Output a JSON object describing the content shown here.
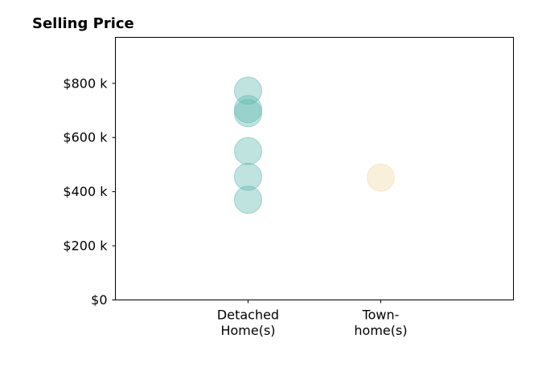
{
  "chart_data": {
    "type": "scatter",
    "title": "Selling Price",
    "xlabel": "",
    "ylabel": "",
    "categories": [
      [
        "Detached",
        "Home(s)"
      ],
      [
        "Town-",
        "home(s)"
      ]
    ],
    "y_ticks": [
      {
        "value": 0,
        "label": "$0"
      },
      {
        "value": 200,
        "label": "$200 k"
      },
      {
        "value": 400,
        "label": "$400 k"
      },
      {
        "value": 600,
        "label": "$600 k"
      },
      {
        "value": 800,
        "label": "$800 k"
      }
    ],
    "ylim": [
      0,
      970
    ],
    "xlim": [
      -1,
      2
    ],
    "grid": false,
    "series": [
      {
        "category_index": 0,
        "color": "#5fb8ae",
        "values": [
          773,
          705,
          690,
          550,
          455,
          370
        ]
      },
      {
        "category_index": 1,
        "color": "#f0d9a6",
        "values": [
          452
        ]
      }
    ]
  }
}
